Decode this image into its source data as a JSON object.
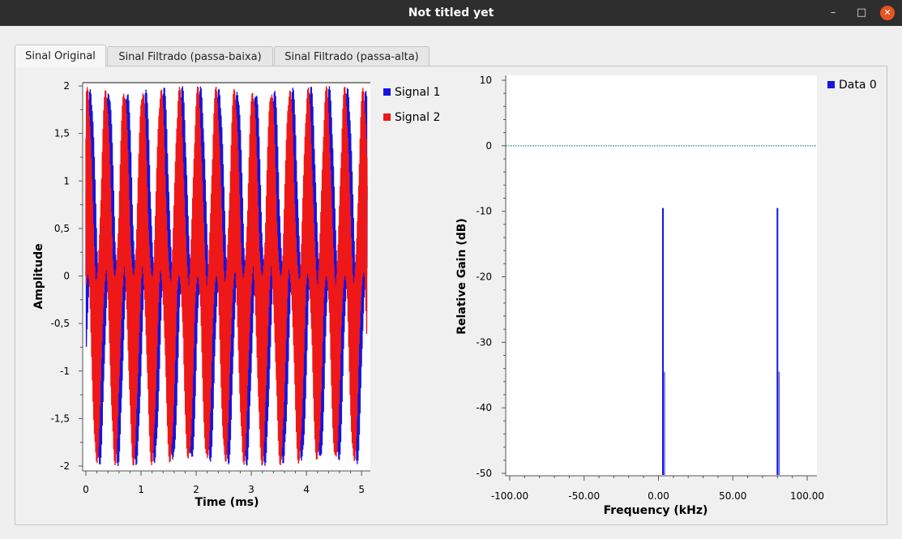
{
  "window": {
    "title": "Not titled yet",
    "controls": {
      "minimize": "–",
      "maximize": "□",
      "close": "✕"
    }
  },
  "tabs": [
    {
      "label": "Sinal Original",
      "active": true
    },
    {
      "label": "Sinal Filtrado (passa-baixa)",
      "active": false
    },
    {
      "label": "Sinal Filtrado (passa-alta)",
      "active": false
    }
  ],
  "colors": {
    "signal1": "#1414e0",
    "signal2": "#ee1818",
    "data0": "#1414e0",
    "reference_line": "#2a8a8a"
  },
  "chart_data": [
    {
      "type": "line",
      "xlabel": "Time (ms)",
      "ylabel": "Amplitude",
      "xlim": [
        0,
        5.1
      ],
      "ylim": [
        -2,
        2
      ],
      "xticks": [
        0,
        1,
        2,
        3,
        4,
        5
      ],
      "xtick_labels": [
        "0",
        "1",
        "2",
        "3",
        "4",
        "5"
      ],
      "yticks": [
        2,
        1.5,
        1,
        0.5,
        0,
        -0.5,
        -1,
        -1.5,
        -2
      ],
      "ytick_labels": [
        "2",
        "1,5",
        "1",
        "0,5",
        "0",
        "-0,5",
        "-1",
        "-1,5",
        "-2"
      ],
      "legend_position": "right",
      "series": [
        {
          "name": "Signal 1",
          "components": [
            {
              "freq_khz": 3,
              "amp": 1
            },
            {
              "freq_khz": 80,
              "amp": 1
            }
          ]
        },
        {
          "name": "Signal 2",
          "components": [
            {
              "freq_khz": 3,
              "amp": 1
            },
            {
              "freq_khz": 80,
              "amp": 1
            }
          ],
          "phase_offset_ms": 0.055
        }
      ]
    },
    {
      "type": "line",
      "xlabel": "Frequency (kHz)",
      "ylabel": "Relative Gain (dB)",
      "xlim": [
        -100,
        100
      ],
      "ylim": [
        -50,
        10
      ],
      "xticks": [
        -100,
        -50,
        0,
        50,
        100
      ],
      "xtick_labels": [
        "-100.00",
        "-50.00",
        "0.00",
        "50.00",
        "100.00"
      ],
      "yticks": [
        10,
        0,
        -10,
        -20,
        -30,
        -40,
        -50
      ],
      "ytick_labels": [
        "10",
        "0",
        "-10",
        "-20",
        "-30",
        "-40",
        "-50"
      ],
      "legend_position": "top-right",
      "reference_line_db": 0,
      "series": [
        {
          "name": "Data 0",
          "peaks": [
            {
              "x": 3,
              "y": -9.5
            },
            {
              "x": 80,
              "y": -9.5
            }
          ]
        }
      ]
    }
  ]
}
